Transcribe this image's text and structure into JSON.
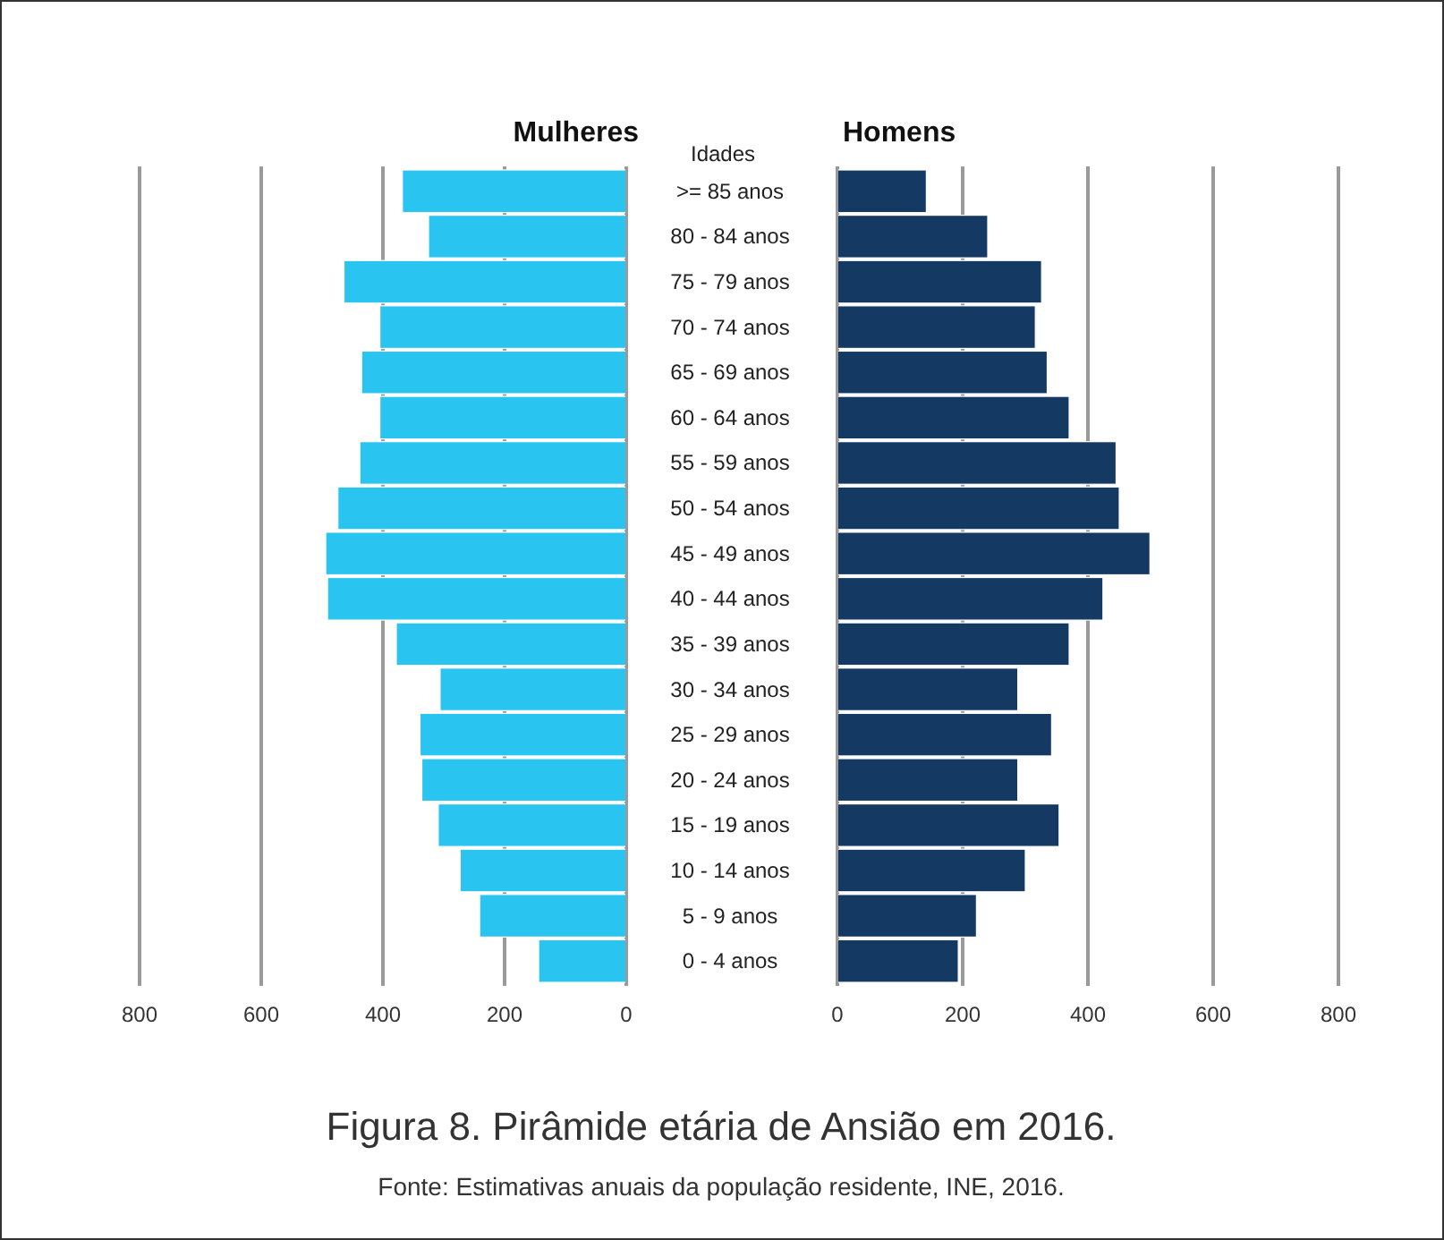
{
  "chart_data": [
    {
      "type": "bar",
      "orientation": "horizontal",
      "title": "Mulheres",
      "categories": [
        null,
        null,
        null,
        null,
        null,
        null,
        null,
        null,
        null,
        null,
        null,
        null,
        null,
        null,
        null,
        null,
        null,
        null
      ],
      "series": [
        {
          "color": "#29c4f0",
          "values": [
            368,
            325,
            464,
            405,
            435,
            405,
            438,
            474,
            494,
            491,
            378,
            306,
            339,
            336,
            309,
            273,
            241,
            144
          ]
        }
      ],
      "xlim": [
        800,
        0
      ],
      "xticks": [
        800,
        600,
        400,
        200,
        0
      ],
      "grid": "x"
    },
    {
      "type": "bar",
      "orientation": "horizontal",
      "title": "Homens",
      "ylabel": "Idades",
      "categories": [
        ">= 85 anos",
        "80 - 84 anos",
        "75 - 79 anos",
        "70 - 74 anos",
        "65 - 69 anos",
        "60 - 64 anos",
        "55 - 59 anos",
        "50 - 54 anos",
        "45 - 49 anos",
        "40 - 44 anos",
        "35 - 39 anos",
        "30 - 34 anos",
        "25 - 29 anos",
        "20 - 24 anos",
        "15 - 19 anos",
        "10 - 14 anos",
        "5 - 9 anos",
        "0 - 4 anos"
      ],
      "series": [
        {
          "color": "#143a64",
          "values": [
            142,
            240,
            326,
            316,
            335,
            370,
            445,
            450,
            499,
            424,
            370,
            288,
            342,
            288,
            354,
            300,
            222,
            193
          ]
        }
      ],
      "xlim": [
        0,
        800
      ],
      "xticks": [
        0,
        200,
        400,
        600,
        800
      ],
      "grid": "x",
      "annotations": [
        "Figura 8. Pirâmide etária de Ansião em 2016.",
        "Fonte: Estimativas anuais da população residente, INE, 2016."
      ]
    }
  ]
}
